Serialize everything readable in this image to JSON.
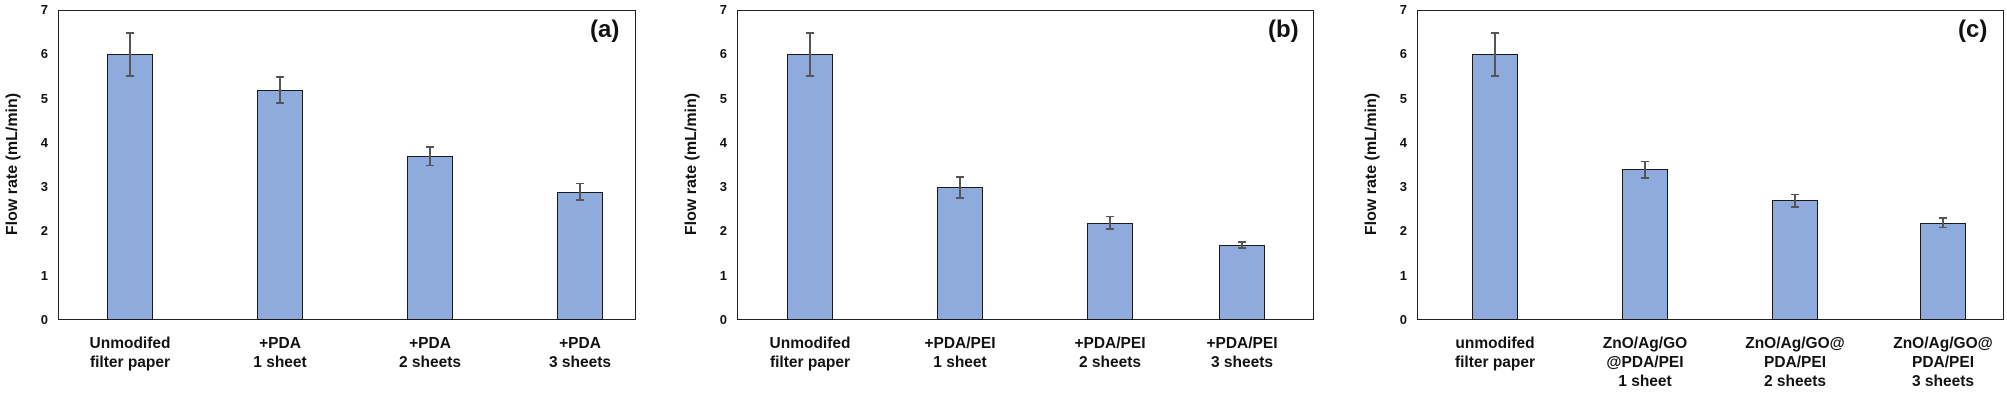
{
  "chart_data": [
    {
      "type": "bar",
      "panel_tag": "(a)",
      "title": "",
      "xlabel": "",
      "ylabel": "Flow rate (mL/min)",
      "ylim": [
        0,
        7
      ],
      "yticks": [
        "0",
        "1",
        "2",
        "3",
        "4",
        "5",
        "6",
        "7"
      ],
      "grid": false,
      "categories": [
        "Unmodifed\nfilter paper",
        "+PDA\n1 sheet",
        "+PDA\n2 sheets",
        "+PDA\n3 sheets"
      ],
      "values": [
        6.0,
        5.2,
        3.7,
        2.9
      ],
      "errors": [
        0.5,
        0.3,
        0.22,
        0.2
      ],
      "bar_color": "#8faadc"
    },
    {
      "type": "bar",
      "panel_tag": "(b)",
      "title": "",
      "xlabel": "",
      "ylabel": "Flow rate (mL/min)",
      "ylim": [
        0,
        7
      ],
      "yticks": [
        "0",
        "1",
        "2",
        "3",
        "4",
        "5",
        "6",
        "7"
      ],
      "grid": false,
      "categories": [
        "Unmodifed\nfilter paper",
        "+PDA/PEI\n1 sheet",
        "+PDA/PEI\n2 sheets",
        "+PDA/PEI\n3 sheets"
      ],
      "values": [
        6.0,
        3.0,
        2.2,
        1.7
      ],
      "errors": [
        0.5,
        0.25,
        0.15,
        0.08
      ],
      "bar_color": "#8faadc"
    },
    {
      "type": "bar",
      "panel_tag": "(c)",
      "title": "",
      "xlabel": "",
      "ylabel": "Flow rate (mL/min)",
      "ylim": [
        0,
        7
      ],
      "yticks": [
        "0",
        "1",
        "2",
        "3",
        "4",
        "5",
        "6",
        "7"
      ],
      "grid": false,
      "categories": [
        "unmodifed\nfilter paper",
        "ZnO/Ag/GO\n@PDA/PEI\n1 sheet",
        "ZnO/Ag/GO@\nPDA/PEI\n2 sheets",
        "ZnO/Ag/GO@\nPDA/PEI\n3 sheets"
      ],
      "values": [
        6.0,
        3.4,
        2.7,
        2.2
      ],
      "errors": [
        0.5,
        0.2,
        0.15,
        0.12
      ],
      "bar_color": "#8faadc"
    }
  ]
}
